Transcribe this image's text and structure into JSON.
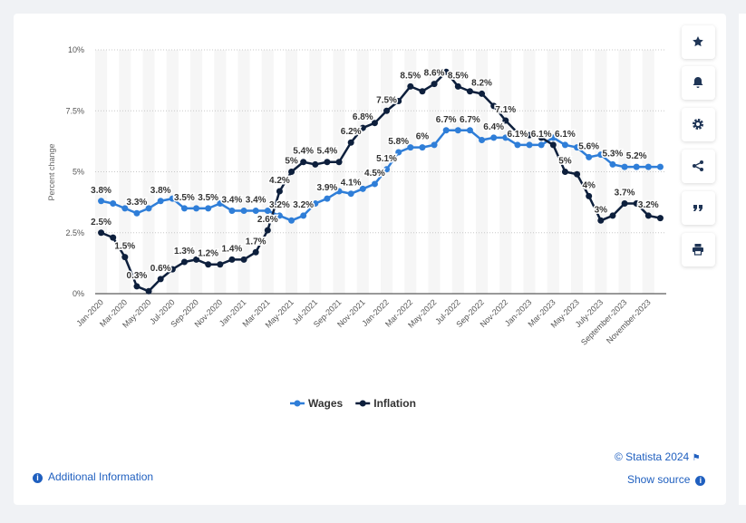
{
  "chart_data": {
    "type": "line",
    "ylabel": "Percent change",
    "categories": [
      "Jan-2020",
      null,
      "Mar-2020",
      null,
      "May-2020",
      null,
      "Jul-2020",
      null,
      "Sep-2020",
      null,
      "Nov-2020",
      null,
      "Jan-2021",
      null,
      "Mar-2021",
      null,
      "May-2021",
      null,
      "Jul-2021",
      null,
      "Sep-2021",
      null,
      "Nov-2021",
      null,
      "Jan-2022",
      null,
      "Mar-2022",
      null,
      "May-2022",
      null,
      "Jul-2022",
      null,
      "Sep-2022",
      null,
      "Nov-2022",
      null,
      "Jan-2023",
      null,
      "Mar-2023",
      null,
      "May-2023",
      null,
      "July-2023",
      null,
      "September-2023",
      null,
      "November-2023",
      null
    ],
    "series": [
      {
        "name": "Wages",
        "color": "#2f7ed8",
        "values": [
          3.8,
          3.7,
          3.5,
          3.3,
          3.5,
          3.8,
          3.9,
          3.5,
          3.5,
          3.5,
          3.7,
          3.4,
          3.4,
          3.4,
          3.4,
          3.2,
          3.0,
          3.2,
          3.7,
          3.9,
          4.2,
          4.1,
          4.3,
          4.5,
          5.1,
          5.8,
          6.0,
          6.0,
          6.1,
          6.7,
          6.7,
          6.7,
          6.3,
          6.4,
          6.4,
          6.1,
          6.1,
          6.1,
          6.4,
          6.1,
          6.0,
          5.6,
          5.7,
          5.3,
          5.2,
          5.2,
          5.2,
          5.2
        ],
        "value_labels": [
          "3.8%",
          null,
          null,
          "3.3%",
          null,
          "3.8%",
          null,
          "3.5%",
          null,
          "3.5%",
          null,
          "3.4%",
          null,
          "3.4%",
          null,
          "3.2%",
          null,
          "3.2%",
          null,
          "3.9%",
          null,
          "4.1%",
          null,
          "4.5%",
          "5.1%",
          "5.8%",
          null,
          "6%",
          null,
          "6.7%",
          null,
          "6.7%",
          null,
          "6.4%",
          null,
          "6.1%",
          null,
          "6.1%",
          null,
          "6.1%",
          null,
          "5.6%",
          null,
          "5.3%",
          null,
          "5.2%",
          null,
          null
        ]
      },
      {
        "name": "Inflation",
        "color": "#0d1f3c",
        "values": [
          2.5,
          2.3,
          1.5,
          0.3,
          0.1,
          0.6,
          1.0,
          1.3,
          1.4,
          1.2,
          1.2,
          1.4,
          1.4,
          1.7,
          2.6,
          4.2,
          5.0,
          5.4,
          5.3,
          5.4,
          5.4,
          6.2,
          6.8,
          7.0,
          7.5,
          7.9,
          8.5,
          8.3,
          8.6,
          9.1,
          8.5,
          8.3,
          8.2,
          7.7,
          7.1,
          6.6,
          6.5,
          6.4,
          6.1,
          5.0,
          4.9,
          4.0,
          3.0,
          3.2,
          3.7,
          3.7,
          3.2,
          3.1
        ],
        "value_labels": [
          "2.5%",
          null,
          "1.5%",
          "0.3%",
          null,
          "0.6%",
          null,
          "1.3%",
          null,
          "1.2%",
          null,
          "1.4%",
          null,
          "1.7%",
          "2.6%",
          "4.2%",
          "5%",
          "5.4%",
          null,
          "5.4%",
          null,
          "6.2%",
          "6.8%",
          null,
          "7.5%",
          null,
          "8.5%",
          null,
          "8.6%",
          null,
          "8.5%",
          null,
          "8.2%",
          null,
          "7.1%",
          null,
          null,
          null,
          null,
          "5%",
          null,
          "4%",
          "3%",
          null,
          "3.7%",
          null,
          "3.2%",
          null
        ]
      }
    ],
    "ylim": [
      0,
      10
    ],
    "yticks": [
      {
        "value": 0,
        "label": "0%"
      },
      {
        "value": 2.5,
        "label": "2.5%"
      },
      {
        "value": 5,
        "label": "5%"
      },
      {
        "value": 7.5,
        "label": "7.5%"
      },
      {
        "value": 10,
        "label": "10%"
      }
    ],
    "grid": true,
    "legend": "bottom"
  },
  "footer": {
    "additional_information": "Additional Information",
    "copyright": "© Statista 2024",
    "show_source": "Show source"
  }
}
